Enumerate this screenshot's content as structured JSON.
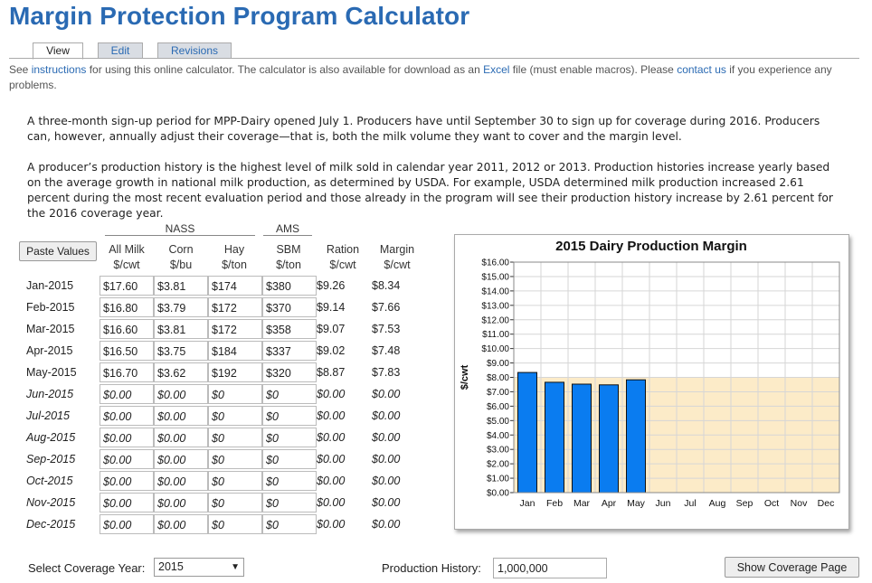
{
  "page": {
    "title": "Margin Protection Program Calculator"
  },
  "tabs": [
    {
      "label": "View",
      "active": true
    },
    {
      "label": "Edit",
      "active": false
    },
    {
      "label": "Revisions",
      "active": false
    }
  ],
  "info": {
    "t1": "See ",
    "link_instructions": "instructions",
    "t2": " for using this online calculator. The calculator is also available for download as an ",
    "link_excel": "Excel",
    "t3": " file (must enable macros). Please ",
    "link_contact": "contact us",
    "t4": " if you experience any problems."
  },
  "paragraphs": [
    "A three-month sign-up period for MPP-Dairy opened July 1. Producers have until September 30 to sign up for coverage during 2016. Producers can, however, annually adjust their coverage—that is, both the milk volume they want to cover and the margin level.",
    "A producer’s production history is the highest level of milk sold in calendar year 2011, 2012 or 2013. Production histories increase yearly based on the average growth in national milk production, as determined by USDA. For example, USDA determined milk production increased 2.61 percent during the most recent evaluation period and those already in the program will see their production history increase by 2.61 percent for the 2016 coverage year."
  ],
  "table": {
    "paste_label": "Paste Values",
    "groups": {
      "nass": "NASS",
      "ams": "AMS"
    },
    "columns": [
      {
        "line1": "All Milk",
        "line2": "$/cwt"
      },
      {
        "line1": "Corn",
        "line2": "$/bu"
      },
      {
        "line1": "Hay",
        "line2": "$/ton"
      },
      {
        "line1": "SBM",
        "line2": "$/ton"
      },
      {
        "line1": "Ration",
        "line2": "$/cwt"
      },
      {
        "line1": "Margin",
        "line2": "$/cwt"
      }
    ],
    "rows": [
      {
        "month": "Jan-2015",
        "milk": "$17.60",
        "corn": "$3.81",
        "hay": "$174",
        "sbm": "$380",
        "ration": "$9.26",
        "margin": "$8.34",
        "future": false
      },
      {
        "month": "Feb-2015",
        "milk": "$16.80",
        "corn": "$3.79",
        "hay": "$172",
        "sbm": "$370",
        "ration": "$9.14",
        "margin": "$7.66",
        "future": false
      },
      {
        "month": "Mar-2015",
        "milk": "$16.60",
        "corn": "$3.81",
        "hay": "$172",
        "sbm": "$358",
        "ration": "$9.07",
        "margin": "$7.53",
        "future": false
      },
      {
        "month": "Apr-2015",
        "milk": "$16.50",
        "corn": "$3.75",
        "hay": "$184",
        "sbm": "$337",
        "ration": "$9.02",
        "margin": "$7.48",
        "future": false
      },
      {
        "month": "May-2015",
        "milk": "$16.70",
        "corn": "$3.62",
        "hay": "$192",
        "sbm": "$320",
        "ration": "$8.87",
        "margin": "$7.83",
        "future": false
      },
      {
        "month": "Jun-2015",
        "milk": "$0.00",
        "corn": "$0.00",
        "hay": "$0",
        "sbm": "$0",
        "ration": "$0.00",
        "margin": "$0.00",
        "future": true
      },
      {
        "month": "Jul-2015",
        "milk": "$0.00",
        "corn": "$0.00",
        "hay": "$0",
        "sbm": "$0",
        "ration": "$0.00",
        "margin": "$0.00",
        "future": true
      },
      {
        "month": "Aug-2015",
        "milk": "$0.00",
        "corn": "$0.00",
        "hay": "$0",
        "sbm": "$0",
        "ration": "$0.00",
        "margin": "$0.00",
        "future": true
      },
      {
        "month": "Sep-2015",
        "milk": "$0.00",
        "corn": "$0.00",
        "hay": "$0",
        "sbm": "$0",
        "ration": "$0.00",
        "margin": "$0.00",
        "future": true
      },
      {
        "month": "Oct-2015",
        "milk": "$0.00",
        "corn": "$0.00",
        "hay": "$0",
        "sbm": "$0",
        "ration": "$0.00",
        "margin": "$0.00",
        "future": true
      },
      {
        "month": "Nov-2015",
        "milk": "$0.00",
        "corn": "$0.00",
        "hay": "$0",
        "sbm": "$0",
        "ration": "$0.00",
        "margin": "$0.00",
        "future": true
      },
      {
        "month": "Dec-2015",
        "milk": "$0.00",
        "corn": "$0.00",
        "hay": "$0",
        "sbm": "$0",
        "ration": "$0.00",
        "margin": "$0.00",
        "future": true
      }
    ]
  },
  "chart_data": {
    "type": "bar",
    "title": "2015 Dairy Production Margin",
    "ylabel": "$/cwt",
    "xlabel": "",
    "categories": [
      "Jan",
      "Feb",
      "Mar",
      "Apr",
      "May",
      "Jun",
      "Jul",
      "Aug",
      "Sep",
      "Oct",
      "Nov",
      "Dec"
    ],
    "values": [
      8.34,
      7.66,
      7.53,
      7.48,
      7.83,
      null,
      null,
      null,
      null,
      null,
      null,
      null
    ],
    "ylim": [
      0,
      16
    ],
    "yticks": [
      "$0.00",
      "$1.00",
      "$2.00",
      "$3.00",
      "$4.00",
      "$5.00",
      "$6.00",
      "$7.00",
      "$8.00",
      "$9.00",
      "$10.00",
      "$11.00",
      "$12.00",
      "$13.00",
      "$14.00",
      "$15.00",
      "$16.00"
    ],
    "coverage_level": 8.0,
    "grid": true,
    "bar_color": "#0a7cf0",
    "coverage_color": "#fcebc8",
    "grid_color": "#d6d6d6"
  },
  "controls": {
    "coverage_year_label": "Select Coverage Year:",
    "coverage_year_value": "2015",
    "production_history_label": "Production History:",
    "production_history_value": "1,000,000",
    "show_coverage_label": "Show Coverage Page"
  },
  "colors": {
    "title": "#2a6ab3",
    "link": "#2a6ab3"
  }
}
